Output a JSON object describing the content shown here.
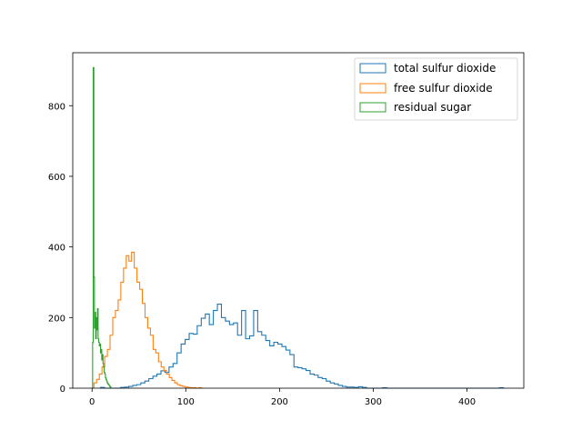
{
  "chart_data": {
    "type": "histogram",
    "title": "",
    "xlabel": "",
    "ylabel": "",
    "xlim": [
      -20.6,
      460.6
    ],
    "ylim": [
      0,
      950
    ],
    "xticks": [
      0,
      100,
      200,
      300,
      400
    ],
    "yticks": [
      0,
      200,
      400,
      600,
      800
    ],
    "grid": false,
    "legend_position": "top-right",
    "series": [
      {
        "name": "total sulfur dioxide",
        "color": "#1f77b4",
        "x_min": 9.0,
        "bin_width": 4.3,
        "counts": [
          2,
          0,
          0,
          0,
          0,
          2,
          3,
          5,
          8,
          10,
          15,
          20,
          27,
          34,
          40,
          49,
          45,
          60,
          70,
          100,
          125,
          138,
          155,
          153,
          177,
          198,
          210,
          180,
          220,
          238,
          200,
          190,
          180,
          185,
          150,
          220,
          140,
          148,
          220,
          160,
          150,
          135,
          120,
          130,
          125,
          118,
          108,
          95,
          60,
          58,
          55,
          50,
          40,
          37,
          30,
          27,
          20,
          15,
          12,
          8,
          5,
          3,
          3,
          2,
          4,
          2,
          0,
          0,
          0,
          0,
          1,
          0,
          0,
          0,
          0,
          0,
          0,
          0,
          0,
          0,
          0,
          0,
          0,
          0,
          0,
          0,
          0,
          0,
          0,
          0,
          0,
          0,
          0,
          0,
          0,
          0,
          0,
          0,
          0,
          1
        ]
      },
      {
        "name": "free sulfur dioxide",
        "color": "#ff7f0e",
        "x_min": 2.0,
        "bin_width": 2.87,
        "counts": [
          15,
          25,
          40,
          60,
          90,
          110,
          150,
          200,
          220,
          250,
          300,
          340,
          375,
          360,
          385,
          340,
          300,
          280,
          240,
          200,
          170,
          150,
          110,
          100,
          75,
          60,
          50,
          40,
          30,
          22,
          15,
          10,
          7,
          5,
          3,
          2,
          1,
          1,
          0,
          1
        ]
      },
      {
        "name": "residual sugar",
        "color": "#2ca02c",
        "x_min": 0.6,
        "bin_width": 0.65,
        "counts": [
          130,
          908,
          315,
          170,
          215,
          140,
          200,
          165,
          225,
          140,
          130,
          120,
          125,
          100,
          110,
          80,
          95,
          70,
          60,
          45,
          40,
          30,
          25,
          20,
          15,
          12,
          10,
          8,
          5,
          3
        ]
      }
    ]
  }
}
